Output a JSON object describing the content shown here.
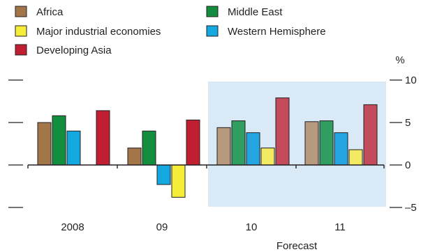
{
  "chart_data": {
    "type": "bar",
    "unit_label": "%",
    "categories": [
      "2008",
      "09",
      "10",
      "11"
    ],
    "forecast_label": "Forecast",
    "forecast_categories": [
      "10",
      "11"
    ],
    "ylim": [
      -5,
      10
    ],
    "yticks": [
      {
        "value": 10,
        "label": "10"
      },
      {
        "value": 5,
        "label": "5"
      },
      {
        "value": 0,
        "label": "0"
      },
      {
        "value": -5,
        "label": "–5"
      }
    ],
    "series": [
      {
        "name": "Africa",
        "color": "#a3764a",
        "forecast_color": "#b79a7e",
        "values": [
          5.0,
          2.0,
          4.4,
          5.1
        ]
      },
      {
        "name": "Middle East",
        "color": "#138e3e",
        "forecast_color": "#2f9e60",
        "values": [
          5.8,
          4.0,
          5.2,
          5.2
        ]
      },
      {
        "name": "Western Hemisphere",
        "color": "#14a8e0",
        "forecast_color": "#25a6e2",
        "values": [
          4.0,
          -2.3,
          3.8,
          3.8
        ]
      },
      {
        "name": "Major industrial economies",
        "color": "#f6ed38",
        "forecast_color": "#f3ea63",
        "values": [
          null,
          -3.8,
          2.0,
          1.8
        ]
      },
      {
        "name": "Developing Asia",
        "color": "#c01f32",
        "forecast_color": "#c34b5c",
        "values": [
          6.4,
          5.3,
          7.9,
          7.1
        ]
      }
    ],
    "legend": {
      "placement": "top",
      "entries": [
        {
          "series": "Africa",
          "label": "Africa"
        },
        {
          "series": "Major industrial economies",
          "label": "Major industrial economies"
        },
        {
          "series": "Developing Asia",
          "label": "Developing Asia"
        },
        {
          "series": "Middle East",
          "label": "Middle East"
        },
        {
          "series": "Western Hemisphere",
          "label": "Western Hemisphere"
        }
      ]
    },
    "forecast_shade_color": "#d9eaf6",
    "grid": false
  }
}
